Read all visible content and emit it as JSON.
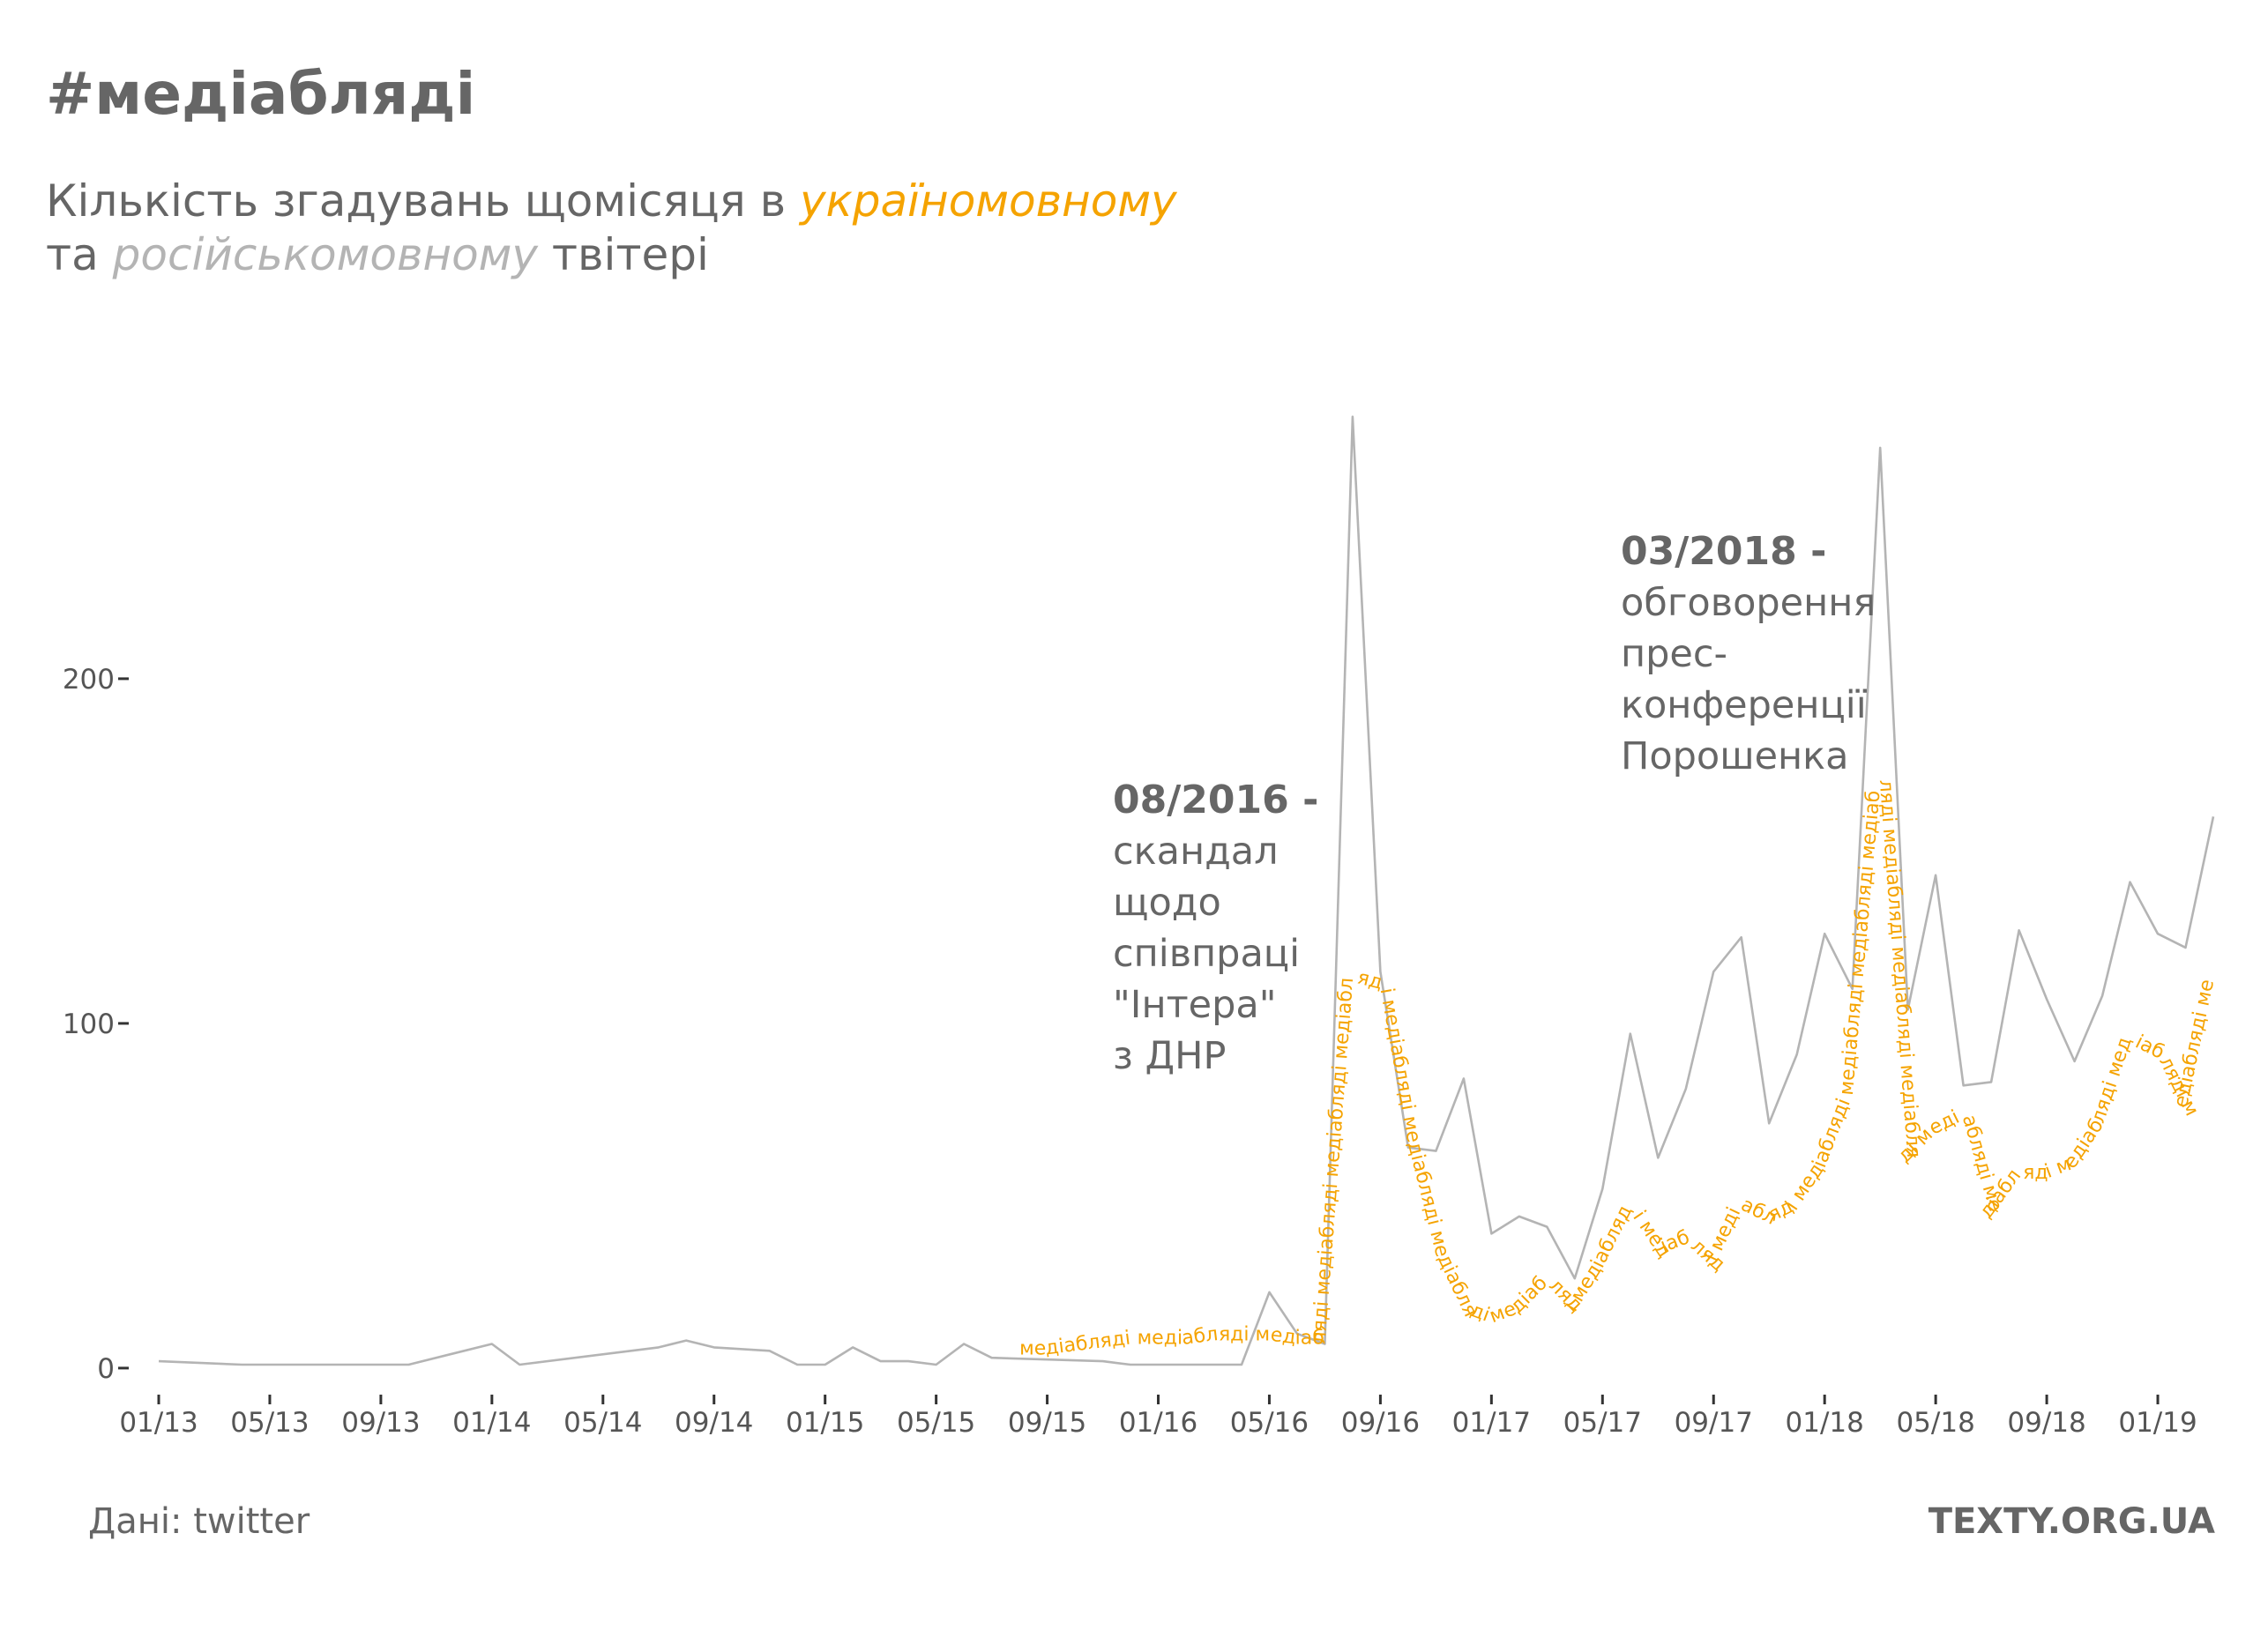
{
  "header": {
    "title": "#медіабляді",
    "subtitle_part1": "Кількість згадувань щомісяця в ",
    "subtitle_uk": "україномовному",
    "subtitle_part2": "та ",
    "subtitle_ru": "російськомовному",
    "subtitle_part3": " твітері"
  },
  "footer": {
    "source": "Дані: twitter",
    "brand": "TEXTY.ORG.UA"
  },
  "colors": {
    "ukrainian": "#f5a300",
    "russian": "#b4b4b4",
    "text": "#666666",
    "axis": "#333333"
  },
  "chart_data": {
    "type": "line",
    "title": "#медіабляді",
    "subtitle": "Кількість згадувань щомісяця в україномовному та російськомовному твітері",
    "x_start": "2013-01",
    "x_end": "2019-03",
    "x_tick_labels": [
      "01/13",
      "05/13",
      "09/13",
      "01/14",
      "05/14",
      "09/14",
      "01/15",
      "05/15",
      "09/15",
      "01/16",
      "05/16",
      "09/16",
      "01/17",
      "05/17",
      "09/17",
      "01/18",
      "05/18",
      "09/18",
      "01/19"
    ],
    "ylim": [
      -10,
      290
    ],
    "y_ticks": [
      0,
      100,
      200
    ],
    "grid": false,
    "series": [
      {
        "name": "російськомовному",
        "style": "line",
        "color": "#b4b4b4",
        "points": [
          [
            "2013-01",
            2
          ],
          [
            "2013-04",
            1
          ],
          [
            "2013-10",
            1
          ],
          [
            "2014-01",
            7
          ],
          [
            "2014-02",
            1
          ],
          [
            "2014-07",
            6
          ],
          [
            "2014-08",
            8
          ],
          [
            "2014-09",
            6
          ],
          [
            "2014-11",
            5
          ],
          [
            "2014-12",
            1
          ],
          [
            "2015-01",
            1
          ],
          [
            "2015-02",
            6
          ],
          [
            "2015-03",
            2
          ],
          [
            "2015-04",
            2
          ],
          [
            "2015-05",
            1
          ],
          [
            "2015-06",
            7
          ],
          [
            "2015-07",
            3
          ],
          [
            "2015-11",
            2
          ],
          [
            "2015-12",
            1
          ],
          [
            "2016-04",
            1
          ],
          [
            "2016-05",
            22
          ],
          [
            "2016-06",
            10
          ],
          [
            "2016-07",
            7
          ],
          [
            "2016-08",
            276
          ],
          [
            "2016-09",
            115
          ],
          [
            "2016-10",
            64
          ],
          [
            "2016-11",
            63
          ],
          [
            "2016-12",
            84
          ],
          [
            "2017-01",
            39
          ],
          [
            "2017-02",
            44
          ],
          [
            "2017-03",
            41
          ],
          [
            "2017-04",
            26
          ],
          [
            "2017-05",
            52
          ],
          [
            "2017-06",
            97
          ],
          [
            "2017-07",
            61
          ],
          [
            "2017-08",
            81
          ],
          [
            "2017-09",
            115
          ],
          [
            "2017-10",
            125
          ],
          [
            "2017-11",
            71
          ],
          [
            "2017-12",
            91
          ],
          [
            "2018-01",
            126
          ],
          [
            "2018-02",
            110
          ],
          [
            "2018-03",
            267
          ],
          [
            "2018-04",
            104
          ],
          [
            "2018-05",
            143
          ],
          [
            "2018-06",
            82
          ],
          [
            "2018-07",
            83
          ],
          [
            "2018-08",
            127
          ],
          [
            "2018-09",
            107
          ],
          [
            "2018-10",
            89
          ],
          [
            "2018-11",
            108
          ],
          [
            "2018-12",
            141
          ],
          [
            "2019-01",
            126
          ],
          [
            "2019-02",
            122
          ],
          [
            "2019-03",
            160
          ]
        ]
      },
      {
        "name": "україномовному",
        "style": "text-path",
        "path_text": "медіабляді",
        "color": "#f5a300",
        "points": [
          [
            "2015-08",
            4
          ],
          [
            "2015-09",
            4
          ],
          [
            "2015-10",
            5
          ],
          [
            "2015-11",
            6
          ],
          [
            "2015-12",
            7
          ],
          [
            "2016-01",
            7
          ],
          [
            "2016-02",
            7
          ],
          [
            "2016-03",
            8
          ],
          [
            "2016-04",
            8
          ],
          [
            "2016-05",
            8
          ],
          [
            "2016-06",
            7
          ],
          [
            "2016-07",
            7
          ],
          [
            "2016-08",
            112
          ],
          [
            "2016-09",
            110
          ],
          [
            "2016-10",
            65
          ],
          [
            "2016-11",
            33
          ],
          [
            "2016-12",
            16
          ],
          [
            "2017-01",
            13
          ],
          [
            "2017-02",
            16
          ],
          [
            "2017-03",
            24
          ],
          [
            "2017-04",
            16
          ],
          [
            "2017-05",
            29
          ],
          [
            "2017-06",
            45
          ],
          [
            "2017-07",
            33
          ],
          [
            "2017-08",
            36
          ],
          [
            "2017-09",
            29
          ],
          [
            "2017-10",
            46
          ],
          [
            "2017-11",
            42
          ],
          [
            "2017-12",
            46
          ],
          [
            "2018-01",
            58
          ],
          [
            "2018-02",
            79
          ],
          [
            "2018-03",
            169
          ],
          [
            "2018-04",
            60
          ],
          [
            "2018-05",
            68
          ],
          [
            "2018-06",
            72
          ],
          [
            "2018-07",
            44
          ],
          [
            "2018-08",
            55
          ],
          [
            "2018-09",
            55
          ],
          [
            "2018-10",
            58
          ],
          [
            "2018-11",
            70
          ],
          [
            "2018-12",
            94
          ],
          [
            "2019-01",
            90
          ],
          [
            "2019-02",
            74
          ],
          [
            "2019-03",
            112
          ]
        ]
      }
    ],
    "annotations": [
      {
        "name": "aug-2016",
        "date": "2016-08",
        "heading": "08/2016 -",
        "lines": [
          "скандал",
          "щодо",
          "співпраці",
          "\"Інтера\"",
          "з ДНР"
        ]
      },
      {
        "name": "mar-2018",
        "date": "2018-03",
        "heading": "03/2018 -",
        "lines": [
          "обговорення",
          "прес-",
          "конференції",
          "Порошенка"
        ]
      }
    ]
  }
}
